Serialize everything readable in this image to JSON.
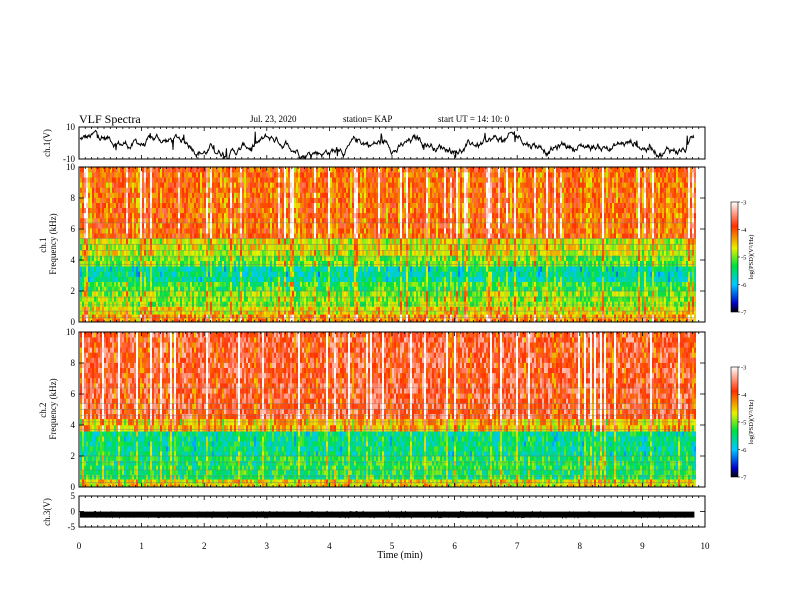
{
  "header": {
    "title": "VLF Spectra",
    "date": "Jul. 23, 2020",
    "station": "station= KAP",
    "start_ut": "start UT =  14: 10: 0"
  },
  "chart_data": [
    {
      "type": "line",
      "panel": "ch1-waveform",
      "ylabel": "ch.1(V)",
      "ylim": [
        -10,
        10
      ],
      "y_ticks": [
        "10",
        "-10"
      ],
      "xlim": [
        0,
        10
      ],
      "data_end_min": 9.83,
      "color": "#000000"
    },
    {
      "type": "heatmap",
      "panel": "ch1-spectrogram",
      "ylabel": "ch.1\nFrequency (kHz)",
      "ylim": [
        0,
        10
      ],
      "y_ticks": [
        "0",
        "2",
        "4",
        "6",
        "8",
        "10"
      ],
      "xlim": [
        0,
        10
      ],
      "data_end_min": 9.83,
      "bands": [
        {
          "f0": 0,
          "f1": 0.5,
          "level": -4.2
        },
        {
          "f0": 0.5,
          "f1": 1.0,
          "level": -4.6
        },
        {
          "f0": 1.0,
          "f1": 2.0,
          "level": -4.9
        },
        {
          "f0": 2.0,
          "f1": 2.6,
          "level": -5.2
        },
        {
          "f0": 2.6,
          "f1": 3.6,
          "level": -5.6
        },
        {
          "f0": 3.6,
          "f1": 4.3,
          "level": -5.0
        },
        {
          "f0": 4.3,
          "f1": 5.4,
          "level": -4.7
        },
        {
          "f0": 5.4,
          "f1": 10,
          "level": -4.0
        }
      ],
      "colorbar": {
        "label": "log(PSD)(V²/Hz)",
        "ticks": [
          "-3",
          "-4",
          "-5",
          "-6",
          "-7"
        ],
        "range": [
          -7,
          -3
        ]
      }
    },
    {
      "type": "heatmap",
      "panel": "ch2-spectrogram",
      "ylabel": "ch.2\nFrequency (kHz)",
      "ylim": [
        0,
        10
      ],
      "y_ticks": [
        "0",
        "2",
        "4",
        "6",
        "8",
        "10"
      ],
      "xlim": [
        0,
        10
      ],
      "data_end_min": 9.83,
      "bands": [
        {
          "f0": 0,
          "f1": 0.5,
          "level": -4.6
        },
        {
          "f0": 0.5,
          "f1": 2.0,
          "level": -5.3
        },
        {
          "f0": 2.0,
          "f1": 3.6,
          "level": -5.5
        },
        {
          "f0": 3.6,
          "f1": 4.4,
          "level": -4.4
        },
        {
          "f0": 4.4,
          "f1": 10,
          "level": -3.7
        }
      ],
      "colorbar": {
        "label": "log(PSD)(V²/Hz)",
        "ticks": [
          "-3",
          "-4",
          "-5",
          "-6",
          "-7"
        ],
        "range": [
          -7,
          -3
        ]
      }
    },
    {
      "type": "line",
      "panel": "ch3-waveform",
      "ylabel": "ch.3(V)",
      "ylim": [
        -5,
        5
      ],
      "y_ticks": [
        "5",
        "0",
        "-5"
      ],
      "xlim": [
        0,
        10
      ],
      "data_end_min": 9.83,
      "level": -1.0,
      "color": "#000000"
    }
  ],
  "x_axis": {
    "label": "Time  (min)",
    "ticks": [
      "0",
      "1",
      "2",
      "3",
      "4",
      "5",
      "6",
      "7",
      "8",
      "9",
      "10"
    ]
  }
}
